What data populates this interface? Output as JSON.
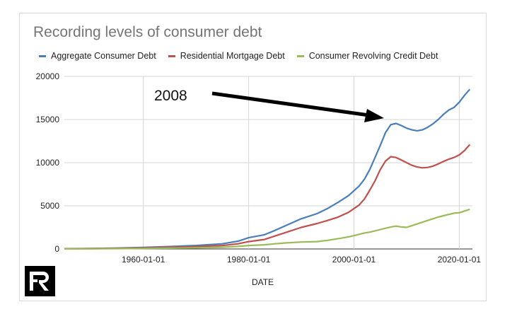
{
  "chart_data": {
    "type": "line",
    "title": "Recording levels of consumer debt",
    "xlabel": "DATE",
    "ylabel": "",
    "x_tick_labels": [
      "1960-01-01",
      "1980-01-01",
      "2000-01-01",
      "2020-01-01"
    ],
    "x_tick_years": [
      1960,
      1980,
      2000,
      2020
    ],
    "xlim": [
      1945,
      2022.5
    ],
    "ylim": [
      0,
      20000
    ],
    "y_ticks": [
      0,
      5000,
      10000,
      15000,
      20000
    ],
    "grid": true,
    "legend_position": "top",
    "annotation": {
      "text": "2008",
      "x": 2008,
      "y": 14500
    },
    "series": [
      {
        "name": "Aggregate Consumer Debt",
        "color": "#4a7ebb",
        "points": [
          [
            1945,
            30
          ],
          [
            1950,
            60
          ],
          [
            1955,
            110
          ],
          [
            1960,
            180
          ],
          [
            1965,
            280
          ],
          [
            1970,
            400
          ],
          [
            1975,
            600
          ],
          [
            1978,
            900
          ],
          [
            1980,
            1300
          ],
          [
            1983,
            1650
          ],
          [
            1985,
            2150
          ],
          [
            1987,
            2700
          ],
          [
            1990,
            3500
          ],
          [
            1993,
            4100
          ],
          [
            1995,
            4700
          ],
          [
            1997,
            5400
          ],
          [
            1999,
            6200
          ],
          [
            2001,
            7300
          ],
          [
            2002,
            8100
          ],
          [
            2003,
            9200
          ],
          [
            2004,
            10600
          ],
          [
            2005,
            12000
          ],
          [
            2006,
            13500
          ],
          [
            2007,
            14400
          ],
          [
            2008,
            14550
          ],
          [
            2009,
            14300
          ],
          [
            2010,
            14000
          ],
          [
            2011,
            13800
          ],
          [
            2012,
            13700
          ],
          [
            2013,
            13800
          ],
          [
            2014,
            14100
          ],
          [
            2015,
            14500
          ],
          [
            2016,
            15000
          ],
          [
            2017,
            15600
          ],
          [
            2018,
            16100
          ],
          [
            2019,
            16400
          ],
          [
            2020,
            17000
          ],
          [
            2021,
            17800
          ],
          [
            2022,
            18500
          ]
        ]
      },
      {
        "name": "Residential Mortgage Debt",
        "color": "#c0504d",
        "points": [
          [
            1945,
            20
          ],
          [
            1950,
            40
          ],
          [
            1955,
            70
          ],
          [
            1960,
            120
          ],
          [
            1965,
            190
          ],
          [
            1970,
            270
          ],
          [
            1975,
            400
          ],
          [
            1978,
            600
          ],
          [
            1980,
            850
          ],
          [
            1983,
            1100
          ],
          [
            1985,
            1500
          ],
          [
            1987,
            1900
          ],
          [
            1990,
            2500
          ],
          [
            1993,
            2950
          ],
          [
            1995,
            3300
          ],
          [
            1997,
            3700
          ],
          [
            1999,
            4250
          ],
          [
            2001,
            5100
          ],
          [
            2002,
            5800
          ],
          [
            2003,
            6800
          ],
          [
            2004,
            7900
          ],
          [
            2005,
            9200
          ],
          [
            2006,
            10200
          ],
          [
            2007,
            10700
          ],
          [
            2008,
            10600
          ],
          [
            2009,
            10300
          ],
          [
            2010,
            10000
          ],
          [
            2011,
            9700
          ],
          [
            2012,
            9500
          ],
          [
            2013,
            9400
          ],
          [
            2014,
            9450
          ],
          [
            2015,
            9600
          ],
          [
            2016,
            9850
          ],
          [
            2017,
            10150
          ],
          [
            2018,
            10400
          ],
          [
            2019,
            10600
          ],
          [
            2020,
            10900
          ],
          [
            2021,
            11400
          ],
          [
            2022,
            12100
          ]
        ]
      },
      {
        "name": "Consumer Revolving Credit Debt",
        "color": "#9bbb59",
        "points": [
          [
            1945,
            10
          ],
          [
            1950,
            20
          ],
          [
            1955,
            40
          ],
          [
            1960,
            60
          ],
          [
            1965,
            90
          ],
          [
            1970,
            130
          ],
          [
            1975,
            200
          ],
          [
            1978,
            300
          ],
          [
            1980,
            400
          ],
          [
            1983,
            480
          ],
          [
            1985,
            600
          ],
          [
            1987,
            700
          ],
          [
            1990,
            800
          ],
          [
            1993,
            850
          ],
          [
            1995,
            1000
          ],
          [
            1997,
            1200
          ],
          [
            1999,
            1400
          ],
          [
            2001,
            1700
          ],
          [
            2002,
            1850
          ],
          [
            2003,
            1950
          ],
          [
            2004,
            2100
          ],
          [
            2005,
            2250
          ],
          [
            2006,
            2400
          ],
          [
            2007,
            2550
          ],
          [
            2008,
            2650
          ],
          [
            2009,
            2550
          ],
          [
            2010,
            2500
          ],
          [
            2011,
            2700
          ],
          [
            2012,
            2900
          ],
          [
            2013,
            3100
          ],
          [
            2014,
            3300
          ],
          [
            2015,
            3500
          ],
          [
            2016,
            3700
          ],
          [
            2017,
            3850
          ],
          [
            2018,
            4000
          ],
          [
            2019,
            4150
          ],
          [
            2020,
            4200
          ],
          [
            2021,
            4400
          ],
          [
            2022,
            4600
          ]
        ]
      }
    ]
  },
  "icons": {
    "logo": "fr-logo",
    "arrow": "annotation-arrow"
  }
}
